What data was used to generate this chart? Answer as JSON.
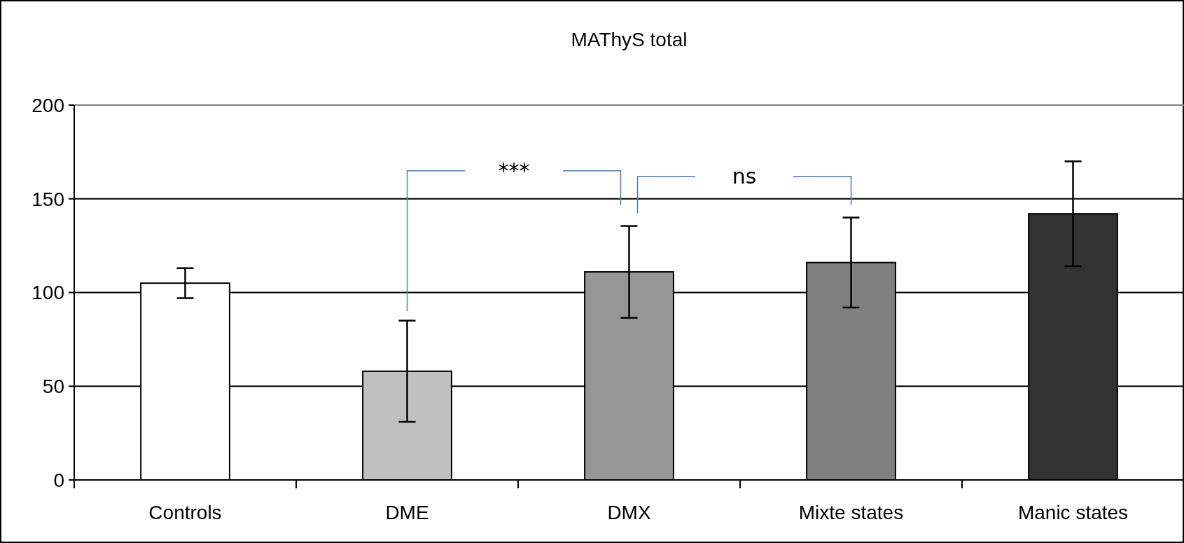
{
  "chart_data": {
    "type": "bar",
    "title": "MAThyS total",
    "categories": [
      "Controls",
      "DME",
      "DMX",
      "Mixte states",
      "Manic states"
    ],
    "values": [
      105,
      58,
      111,
      116,
      142
    ],
    "colors": [
      "#ffffff",
      "#c0c0c0",
      "#969696",
      "#808080",
      "#333333"
    ],
    "errors": [
      8,
      27,
      24.5,
      24,
      28
    ],
    "ylim": [
      0,
      200
    ],
    "yticks": [
      0,
      50,
      100,
      150,
      200
    ],
    "grid": "y",
    "annotations": [
      "***",
      "ns"
    ]
  }
}
